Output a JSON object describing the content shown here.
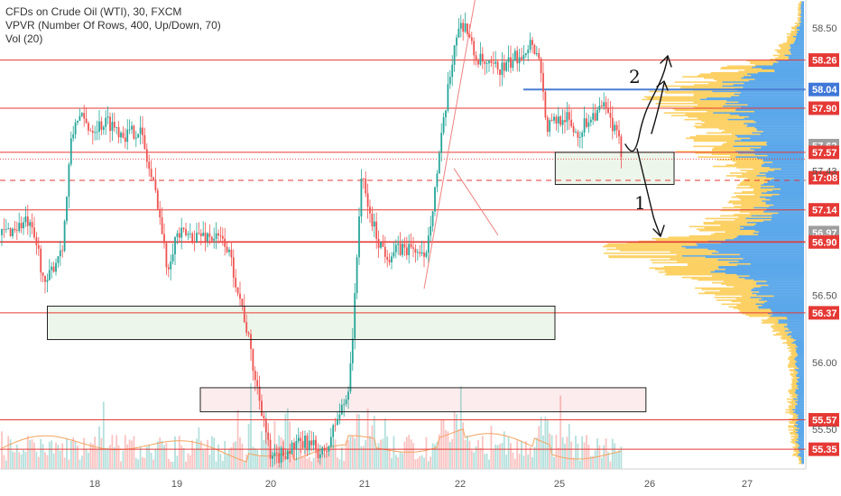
{
  "legend": {
    "line1": "CFDs on Crude Oil (WTI), 30, FXCM",
    "line2": "VPVR (Number Of Rows, 400, Up/Down, 70)",
    "line3": "Vol (20)"
  },
  "colors": {
    "up": "#26a69a",
    "down": "#ef5350",
    "level": "#e53935",
    "blue_level": "#4a7fd4",
    "vp_up": "#fcc94a",
    "vp_down": "#4a9ee8",
    "zone_fill": "#eaf5e6",
    "zone_fill_pink": "#fbe9ea",
    "price_tag_red": "#e53935",
    "price_tag_blue": "#3f77d8",
    "price_tag_gray": "#9e9e9e",
    "ma_line": "#f4a460",
    "trend_line": "#f08080",
    "annotation": "#111111"
  },
  "chart_data": {
    "type": "candlestick",
    "title": "CFDs on Crude Oil (WTI), 30, FXCM",
    "symbol": "CFDs on Crude Oil (WTI)",
    "interval": "30",
    "source": "FXCM",
    "indicators": [
      "VPVR (Number Of Rows, 400, Up/Down, 70)",
      "Vol (20)"
    ],
    "x_ticks": [
      "18",
      "19",
      "20",
      "21",
      "22",
      "25",
      "26",
      "27"
    ],
    "y_ticks": [
      58.5,
      56.5,
      56.0,
      55.5
    ],
    "y_range": [
      55.2,
      58.7
    ],
    "price_levels_red": [
      58.26,
      57.9,
      57.57,
      57.14,
      56.9,
      56.37,
      55.57,
      55.35
    ],
    "price_level_blue": 58.04,
    "price_level_dashed": 57.36,
    "price_labels": [
      {
        "text": "58.50",
        "value": 58.5,
        "style": "axis"
      },
      {
        "text": "58.26",
        "value": 58.26,
        "style": "red"
      },
      {
        "text": "58.04",
        "value": 58.04,
        "style": "blue"
      },
      {
        "text": "57.90",
        "value": 57.9,
        "style": "red"
      },
      {
        "text": "57.62",
        "value": 57.62,
        "style": "gray"
      },
      {
        "text": "57.57",
        "value": 57.57,
        "style": "red"
      },
      {
        "text": "17:08",
        "value": 57.38,
        "style": "red"
      },
      {
        "text": "57.43",
        "value": 57.43,
        "style": "axis"
      },
      {
        "text": "57.14",
        "value": 57.14,
        "style": "red"
      },
      {
        "text": "56.97",
        "value": 56.97,
        "style": "gray"
      },
      {
        "text": "56.90",
        "value": 56.9,
        "style": "red"
      },
      {
        "text": "56.50",
        "value": 56.5,
        "style": "axis"
      },
      {
        "text": "56.37",
        "value": 56.37,
        "style": "red"
      },
      {
        "text": "56.00",
        "value": 56.0,
        "style": "axis"
      },
      {
        "text": "55.57",
        "value": 55.57,
        "style": "red"
      },
      {
        "text": "55.50",
        "value": 55.5,
        "style": "axis"
      },
      {
        "text": "55.35",
        "value": 55.35,
        "style": "red"
      }
    ],
    "zones": [
      {
        "name": "green-zone-upper",
        "price_top": 57.57,
        "price_bottom": 57.33,
        "x_start": "24 10:00",
        "x_end": "26 06:00"
      },
      {
        "name": "green-zone-lower",
        "price_top": 56.42,
        "price_bottom": 56.17,
        "x_start": "17 12:00",
        "x_end": "24 09:00"
      },
      {
        "name": "pink-zone",
        "price_top": 55.81,
        "price_bottom": 55.63,
        "x_start": "19 06:00",
        "x_end": "25 23:00"
      }
    ],
    "annotations": [
      "2",
      "1"
    ]
  }
}
